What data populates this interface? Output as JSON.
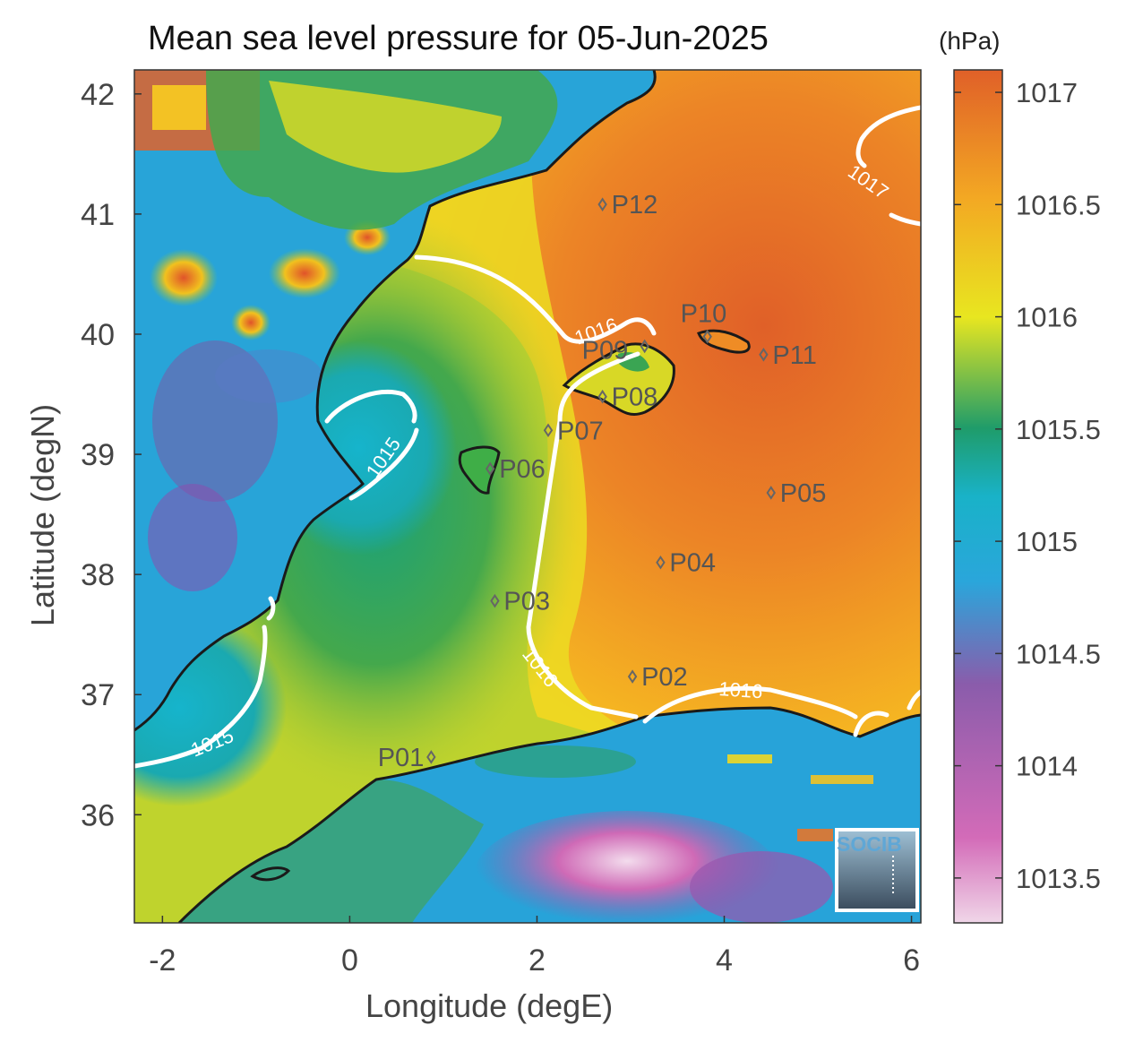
{
  "title": "Mean sea level pressure for 05-Jun-2025",
  "xlabel": "Longitude (degE)",
  "ylabel": "Latitude (degN)",
  "colorbar": {
    "unit": "(hPa)",
    "range": [
      1013.3,
      1017.1
    ],
    "ticks": [
      1013.5,
      1014,
      1014.5,
      1015,
      1015.5,
      1016,
      1016.5,
      1017
    ],
    "tick_labels": [
      "1013.5",
      "1014",
      "1014.5",
      "1015",
      "1015.5",
      "1016",
      "1016.5",
      "1017"
    ],
    "colormap": [
      "#f0d6e8",
      "#d36bb8",
      "#8a5cab",
      "#2aa6db",
      "#1f9c6a",
      "#e8e620",
      "#f3a823",
      "#e06028"
    ]
  },
  "map": {
    "lon_range": [
      -2.3,
      6.1
    ],
    "lat_range": [
      35.1,
      42.2
    ],
    "x_ticks": [
      -2,
      0,
      2,
      4,
      6
    ],
    "x_tick_labels": [
      "-2",
      "0",
      "2",
      "4",
      "6"
    ],
    "y_ticks": [
      36,
      37,
      38,
      39,
      40,
      41,
      42
    ],
    "y_tick_labels": [
      "36",
      "37",
      "38",
      "39",
      "40",
      "41",
      "42"
    ],
    "contour_labels": [
      "1015",
      "1015",
      "1016",
      "1016",
      "1016",
      "1017"
    ],
    "logo_text": "SOCIB"
  },
  "stations": [
    {
      "id": "P01",
      "lon": 0.87,
      "lat": 36.48
    },
    {
      "id": "P02",
      "lon": 3.02,
      "lat": 37.15
    },
    {
      "id": "P03",
      "lon": 1.55,
      "lat": 37.78
    },
    {
      "id": "P04",
      "lon": 3.32,
      "lat": 38.1
    },
    {
      "id": "P05",
      "lon": 4.5,
      "lat": 38.68
    },
    {
      "id": "P06",
      "lon": 1.5,
      "lat": 38.88
    },
    {
      "id": "P07",
      "lon": 2.12,
      "lat": 39.2
    },
    {
      "id": "P08",
      "lon": 2.7,
      "lat": 39.48
    },
    {
      "id": "P09",
      "lon": 3.15,
      "lat": 39.9
    },
    {
      "id": "P10",
      "lon": 3.82,
      "lat": 39.98
    },
    {
      "id": "P11",
      "lon": 4.42,
      "lat": 39.83
    },
    {
      "id": "P12",
      "lon": 2.7,
      "lat": 41.08
    }
  ]
}
